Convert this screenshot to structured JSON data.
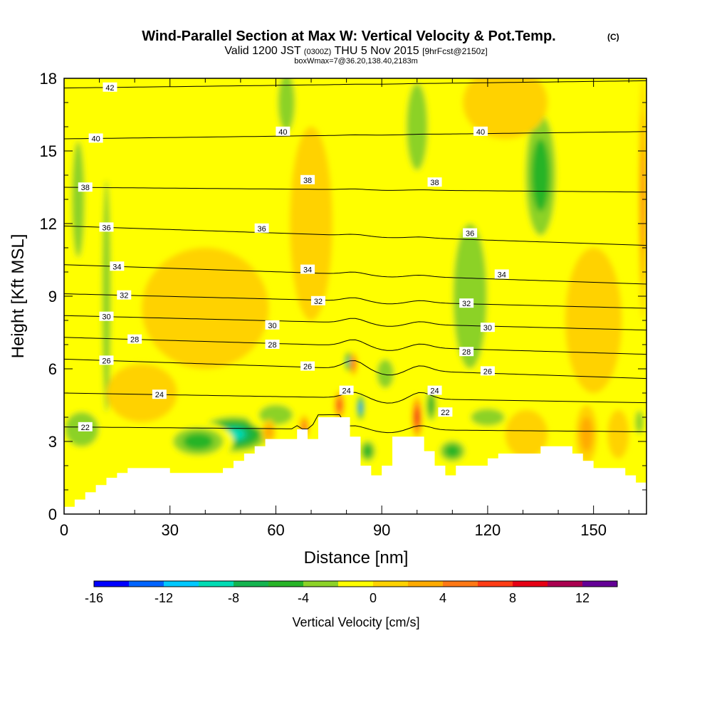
{
  "chart_data": {
    "type": "heatmap",
    "title": "Wind-Parallel Section at Max W: Vertical Velocity & Pot.Temp.",
    "copyright_mark": "(C)",
    "subtitle_main": "Valid 1200 JST",
    "subtitle_utc": "(0300Z)",
    "subtitle_date": "THU 5 Nov 2015",
    "subtitle_fcst": "[9hrFcst@2150z]",
    "subtitle2": "boxWmax=7@36.20,138.40,2183m",
    "xlabel": "Distance [nm]",
    "ylabel": "Height [Kft MSL]",
    "xlim": [
      0,
      165
    ],
    "ylim": [
      0,
      18
    ],
    "x_ticks": [
      "0",
      "30",
      "60",
      "90",
      "120",
      "150"
    ],
    "y_ticks": [
      "0",
      "3",
      "6",
      "9",
      "12",
      "15",
      "18"
    ],
    "colorbar": {
      "label": "Vertical Velocity [cm/s]",
      "range": [
        -16,
        14
      ],
      "step": 2,
      "tick_labels": [
        "-16",
        "-12",
        "-8",
        "-4",
        "0",
        "4",
        "8",
        "12"
      ],
      "colors": [
        "#0000ff",
        "#0064ff",
        "#00c8ff",
        "#00dcb4",
        "#14b450",
        "#28b428",
        "#8cd228",
        "#ffff00",
        "#ffd200",
        "#ffaa00",
        "#ff7814",
        "#ff3c14",
        "#e60014",
        "#aa0050",
        "#640096"
      ]
    },
    "terrain": [
      {
        "x": 0,
        "h": 0.3
      },
      {
        "x": 3,
        "h": 0.6
      },
      {
        "x": 6,
        "h": 0.9
      },
      {
        "x": 9,
        "h": 1.2
      },
      {
        "x": 12,
        "h": 1.5
      },
      {
        "x": 15,
        "h": 1.7
      },
      {
        "x": 18,
        "h": 1.9
      },
      {
        "x": 24,
        "h": 1.9
      },
      {
        "x": 30,
        "h": 1.7
      },
      {
        "x": 42,
        "h": 1.7
      },
      {
        "x": 45,
        "h": 1.9
      },
      {
        "x": 48,
        "h": 2.2
      },
      {
        "x": 51,
        "h": 2.5
      },
      {
        "x": 54,
        "h": 2.8
      },
      {
        "x": 57,
        "h": 3.1
      },
      {
        "x": 63,
        "h": 3.1
      },
      {
        "x": 66,
        "h": 3.5
      },
      {
        "x": 69,
        "h": 3.1
      },
      {
        "x": 72,
        "h": 4.0
      },
      {
        "x": 78,
        "h": 4.0
      },
      {
        "x": 81,
        "h": 3.2
      },
      {
        "x": 84,
        "h": 2.0
      },
      {
        "x": 87,
        "h": 1.6
      },
      {
        "x": 90,
        "h": 2.0
      },
      {
        "x": 93,
        "h": 3.2
      },
      {
        "x": 99,
        "h": 3.2
      },
      {
        "x": 102,
        "h": 2.6
      },
      {
        "x": 105,
        "h": 2.0
      },
      {
        "x": 108,
        "h": 1.6
      },
      {
        "x": 111,
        "h": 2.0
      },
      {
        "x": 117,
        "h": 2.0
      },
      {
        "x": 120,
        "h": 2.3
      },
      {
        "x": 123,
        "h": 2.5
      },
      {
        "x": 132,
        "h": 2.5
      },
      {
        "x": 135,
        "h": 2.8
      },
      {
        "x": 141,
        "h": 2.8
      },
      {
        "x": 144,
        "h": 2.5
      },
      {
        "x": 147,
        "h": 2.2
      },
      {
        "x": 150,
        "h": 1.9
      },
      {
        "x": 156,
        "h": 1.9
      },
      {
        "x": 159,
        "h": 1.6
      },
      {
        "x": 162,
        "h": 1.3
      },
      {
        "x": 165,
        "h": 1.3
      }
    ],
    "w_features": [
      {
        "x": 48,
        "h": 3.3,
        "w": -9,
        "rx": 12,
        "rh": 0.9
      },
      {
        "x": 38,
        "h": 3.0,
        "w": -6,
        "rx": 10,
        "rh": 0.8
      },
      {
        "x": 60,
        "h": 4.1,
        "w": -4,
        "rx": 8,
        "rh": 0.7
      },
      {
        "x": 4,
        "h": 13,
        "w": -4,
        "rx": 3,
        "rh": 4
      },
      {
        "x": 12,
        "h": 9,
        "w": -3,
        "rx": 2,
        "rh": 8
      },
      {
        "x": 5,
        "h": 3.5,
        "w": -3,
        "rx": 8,
        "rh": 1.2
      },
      {
        "x": 135,
        "h": 14,
        "w": -6,
        "rx": 6,
        "rh": 3.5
      },
      {
        "x": 115,
        "h": 9,
        "w": -3,
        "rx": 8,
        "rh": 5
      },
      {
        "x": 100,
        "h": 16,
        "w": -3,
        "rx": 5,
        "rh": 3
      },
      {
        "x": 63,
        "h": 17,
        "w": -3,
        "rx": 4,
        "rh": 2
      },
      {
        "x": 80.5,
        "h": 6.3,
        "w": -10,
        "rx": 1.2,
        "rh": 0.5
      },
      {
        "x": 84,
        "h": 4.4,
        "w": -14,
        "rx": 1.2,
        "rh": 0.6
      },
      {
        "x": 86,
        "h": 2.6,
        "w": -6,
        "rx": 3,
        "rh": 0.6
      },
      {
        "x": 78,
        "h": 4.5,
        "w": 8,
        "rx": 1.5,
        "rh": 0.6
      },
      {
        "x": 82,
        "h": 6.2,
        "w": 7,
        "rx": 1,
        "rh": 0.5
      },
      {
        "x": 91,
        "h": 5.8,
        "w": -3,
        "rx": 4,
        "rh": 1
      },
      {
        "x": 100,
        "h": 4.0,
        "w": 10,
        "rx": 1.5,
        "rh": 0.9
      },
      {
        "x": 104,
        "h": 4.5,
        "w": -5,
        "rx": 2,
        "rh": 0.9
      },
      {
        "x": 110,
        "h": 2.6,
        "w": -5,
        "rx": 5,
        "rh": 0.6
      },
      {
        "x": 120,
        "h": 4.0,
        "w": -3,
        "rx": 8,
        "rh": 0.6
      },
      {
        "x": 131,
        "h": 3.3,
        "w": 2,
        "rx": 6,
        "rh": 1
      },
      {
        "x": 148,
        "h": 3.3,
        "w": 4,
        "rx": 3,
        "rh": 1.2
      },
      {
        "x": 157,
        "h": 3.3,
        "w": 2,
        "rx": 3,
        "rh": 1
      },
      {
        "x": 163,
        "h": 3.8,
        "w": -3,
        "rx": 2,
        "rh": 0.8
      },
      {
        "x": 164,
        "h": 13,
        "w": 6,
        "rx": 1,
        "rh": 5
      },
      {
        "x": 68,
        "h": 3.6,
        "w": 6,
        "rx": 1.5,
        "rh": 0.5
      },
      {
        "x": 58,
        "h": 3.4,
        "w": 4,
        "rx": 2,
        "rh": 0.5
      },
      {
        "x": 40,
        "h": 8.5,
        "w": 2,
        "rx": 18,
        "rh": 2.5
      },
      {
        "x": 70,
        "h": 12,
        "w": 2,
        "rx": 6,
        "rh": 4
      },
      {
        "x": 150,
        "h": 8,
        "w": 2,
        "rx": 8,
        "rh": 3
      },
      {
        "x": 125,
        "h": 17,
        "w": 2,
        "rx": 12,
        "rh": 1.5
      },
      {
        "x": 22,
        "h": 5.0,
        "w": 2,
        "rx": 10,
        "rh": 1.2
      }
    ],
    "theta_contours": [
      {
        "value": "22",
        "h0": 3.6,
        "h165": 3.4,
        "label_x": 6
      },
      {
        "value": "24",
        "h0": 5.0,
        "h165": 4.6,
        "label_x": 27
      },
      {
        "value": "26",
        "h0": 6.4,
        "h165": 5.6,
        "label_x": 12
      },
      {
        "value": "28",
        "h0": 7.3,
        "h165": 6.6,
        "label_x": 20
      },
      {
        "value": "30",
        "h0": 8.2,
        "h165": 7.6,
        "label_x": 12
      },
      {
        "value": "32",
        "h0": 9.1,
        "h165": 8.5,
        "label_x": 17
      },
      {
        "value": "34",
        "h0": 10.3,
        "h165": 9.5,
        "label_x": 15
      },
      {
        "value": "36",
        "h0": 11.9,
        "h165": 11.1,
        "label_x": 12
      },
      {
        "value": "38",
        "h0": 13.5,
        "h165": 13.3,
        "label_x": 6
      },
      {
        "value": "40",
        "h0": 15.5,
        "h165": 15.8,
        "label_x": 9
      },
      {
        "value": "42",
        "h0": 17.6,
        "h165": 17.9,
        "label_x": 13
      }
    ],
    "contour_labels": [
      {
        "value": "40",
        "x": 62,
        "h": 15.8
      },
      {
        "value": "40",
        "x": 118,
        "h": 15.8
      },
      {
        "value": "38",
        "x": 69,
        "h": 13.8
      },
      {
        "value": "38",
        "x": 105,
        "h": 13.7
      },
      {
        "value": "36",
        "x": 56,
        "h": 11.8
      },
      {
        "value": "36",
        "x": 115,
        "h": 11.6
      },
      {
        "value": "34",
        "x": 69,
        "h": 10.1
      },
      {
        "value": "34",
        "x": 124,
        "h": 9.9
      },
      {
        "value": "32",
        "x": 72,
        "h": 8.8
      },
      {
        "value": "32",
        "x": 114,
        "h": 8.7
      },
      {
        "value": "30",
        "x": 59,
        "h": 7.8
      },
      {
        "value": "30",
        "x": 120,
        "h": 7.7
      },
      {
        "value": "28",
        "x": 59,
        "h": 7.0
      },
      {
        "value": "28",
        "x": 114,
        "h": 6.7
      },
      {
        "value": "26",
        "x": 69,
        "h": 6.1
      },
      {
        "value": "26",
        "x": 120,
        "h": 5.9
      },
      {
        "value": "24",
        "x": 80,
        "h": 5.1
      },
      {
        "value": "24",
        "x": 105,
        "h": 5.1
      },
      {
        "value": "22",
        "x": 108,
        "h": 4.2
      }
    ]
  }
}
